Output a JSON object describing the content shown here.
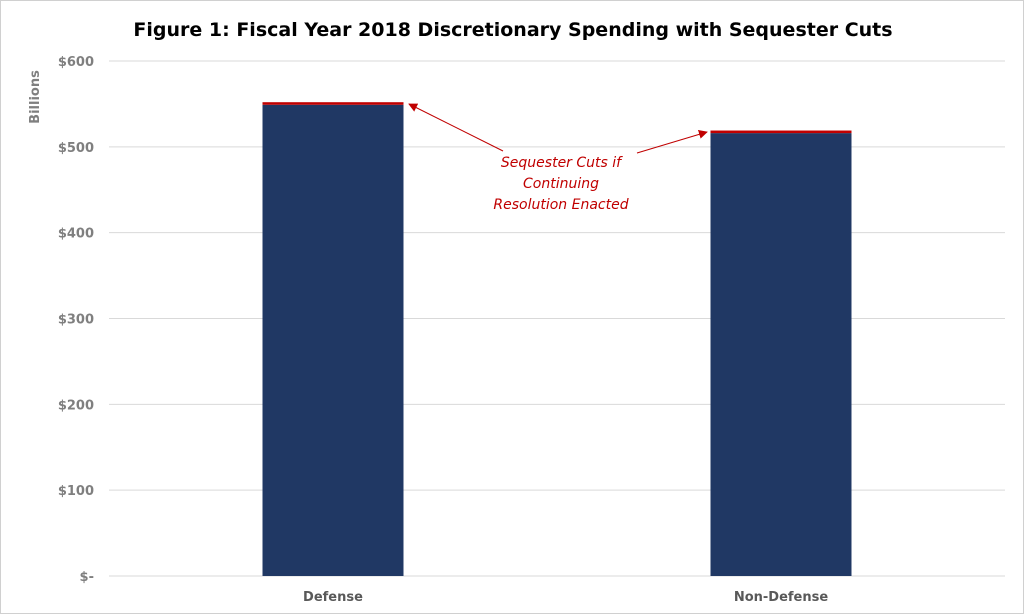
{
  "chart_data": {
    "type": "bar",
    "stacked": true,
    "title": "Figure 1: Fiscal Year 2018 Discretionary Spending with Sequester Cuts",
    "ylabel": "Billions",
    "xlabel": "",
    "categories": [
      "Defense",
      "Non-Defense"
    ],
    "series": [
      {
        "values": [
          549,
          516
        ],
        "color": "#203864"
      },
      {
        "values": [
          3,
          3
        ],
        "color": "#c00000"
      }
    ],
    "ylim": [
      0,
      600
    ],
    "yticks": [
      0,
      100,
      200,
      300,
      400,
      500,
      600
    ],
    "ytick_labels": [
      "$-",
      "$100",
      "$200",
      "$300",
      "$400",
      "$500",
      "$600"
    ],
    "grid": true,
    "annotation": {
      "lines": [
        "Sequester Cuts if",
        "Continuing",
        "Resolution Enacted"
      ],
      "color": "#c00000",
      "points_to": [
        "Defense",
        "Non-Defense"
      ]
    }
  }
}
